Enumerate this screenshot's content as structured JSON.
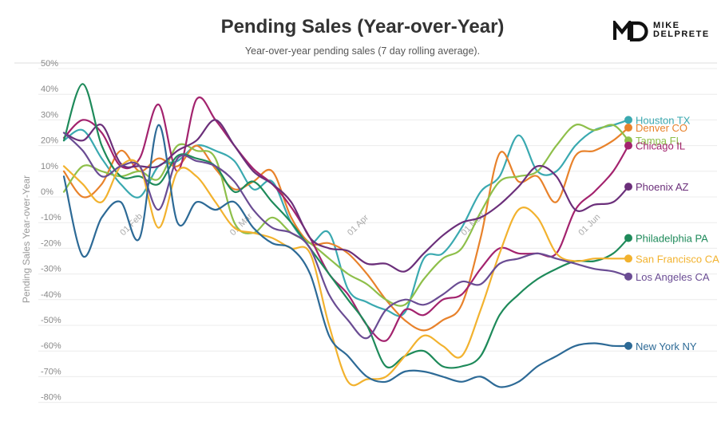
{
  "header": {
    "title": "Pending Sales (Year-over-Year)",
    "subtitle": "Year-over-year pending sales (7 day rolling average)."
  },
  "logo": {
    "mark": "MD",
    "line1": "MIKE",
    "line2": "DELPRETE"
  },
  "chart_data": {
    "type": "line",
    "title": "Pending Sales (Year-over-Year)",
    "subtitle": "Year-over-year pending sales (7 day rolling average).",
    "xlabel": "",
    "ylabel": "Pending Sales Year-over-Year",
    "x": [
      "2020-01-15",
      "2020-01-20",
      "2020-01-25",
      "2020-01-30",
      "2020-02-04",
      "2020-02-09",
      "2020-02-14",
      "2020-02-19",
      "2020-02-24",
      "2020-02-29",
      "2020-03-05",
      "2020-03-10",
      "2020-03-15",
      "2020-03-20",
      "2020-03-25",
      "2020-03-30",
      "2020-04-04",
      "2020-04-09",
      "2020-04-14",
      "2020-04-19",
      "2020-04-24",
      "2020-04-29",
      "2020-05-04",
      "2020-05-09",
      "2020-05-14",
      "2020-05-19",
      "2020-05-24",
      "2020-05-29",
      "2020-06-03",
      "2020-06-08",
      "2020-06-12"
    ],
    "x_ticks": [
      "01 Feb",
      "01 Mar",
      "01 Apr",
      "01 May",
      "01 Jun"
    ],
    "x_tick_dates": [
      "2020-02-01",
      "2020-03-01",
      "2020-04-01",
      "2020-05-01",
      "2020-06-01"
    ],
    "x_range": [
      "2020-01-15",
      "2020-06-12"
    ],
    "y_ticks": [
      "50%",
      "40%",
      "30%",
      "20%",
      "10%",
      "0%",
      "-10%",
      "-20%",
      "-30%",
      "-40%",
      "-50%",
      "-60%",
      "-70%",
      "-80%"
    ],
    "y_tick_values": [
      50,
      40,
      30,
      20,
      10,
      0,
      -10,
      -20,
      -30,
      -40,
      -50,
      -60,
      -70,
      -80
    ],
    "ylim": [
      -82,
      50
    ],
    "grid": true,
    "legend": "end-of-line labels",
    "series": [
      {
        "name": "Houston TX",
        "color": "#3aa9b0",
        "values": [
          22,
          26,
          15,
          5,
          0,
          12,
          14,
          20,
          18,
          14,
          3,
          6,
          -10,
          -18,
          -14,
          -36,
          -41,
          -44,
          -45,
          -24,
          -22,
          -12,
          2,
          8,
          24,
          10,
          10,
          20,
          26,
          28,
          30
        ]
      },
      {
        "name": "Denver CO",
        "color": "#e8822b",
        "values": [
          10,
          0,
          5,
          18,
          10,
          15,
          12,
          20,
          11,
          3,
          6,
          10,
          -8,
          -18,
          -18,
          -22,
          -30,
          -40,
          -48,
          -52,
          -48,
          -42,
          -16,
          17,
          6,
          8,
          -2,
          16,
          18,
          22,
          27
        ]
      },
      {
        "name": "Tampa FL",
        "color": "#8ebf4a",
        "values": [
          2,
          12,
          10,
          8,
          10,
          7,
          20,
          18,
          15,
          -10,
          -14,
          -8,
          -14,
          -18,
          -24,
          -30,
          -34,
          -40,
          -42,
          -32,
          -24,
          -20,
          -6,
          6,
          8,
          10,
          20,
          28,
          26,
          28,
          22
        ]
      },
      {
        "name": "Chicago IL",
        "color": "#a3236e",
        "values": [
          23,
          30,
          25,
          12,
          15,
          36,
          10,
          38,
          30,
          20,
          11,
          5,
          -4,
          -16,
          -30,
          -38,
          -50,
          -56,
          -44,
          -46,
          -40,
          -38,
          -28,
          -20,
          -22,
          -22,
          -22,
          -5,
          2,
          10,
          20
        ]
      },
      {
        "name": "Phoenix AZ",
        "color": "#6b2f7a",
        "values": [
          25,
          22,
          28,
          13,
          12,
          12,
          18,
          22,
          30,
          20,
          10,
          5,
          -2,
          -16,
          -20,
          -21,
          -26,
          -26,
          -29,
          -22,
          -15,
          -10,
          -8,
          -3,
          4,
          12,
          8,
          -5,
          -3,
          -2,
          4
        ]
      },
      {
        "name": "Philadelphia PA",
        "color": "#1e8a5a",
        "values": [
          22,
          44,
          20,
          8,
          8,
          5,
          16,
          15,
          12,
          2,
          6,
          -2,
          -10,
          -20,
          -30,
          -40,
          -50,
          -66,
          -62,
          -60,
          -66,
          -66,
          -62,
          -46,
          -38,
          -32,
          -28,
          -25,
          -25,
          -22,
          -16
        ]
      },
      {
        "name": "San Francisco CA",
        "color": "#f2b22e",
        "values": [
          12,
          5,
          -2,
          12,
          12,
          -12,
          10,
          8,
          -2,
          -12,
          -14,
          -16,
          -20,
          -22,
          -50,
          -72,
          -71,
          -70,
          -62,
          -54,
          -58,
          -62,
          -44,
          -22,
          -5,
          -8,
          -22,
          -25,
          -24,
          -24,
          -24
        ]
      },
      {
        "name": "Los Angeles CA",
        "color": "#6a4c93",
        "values": [
          25,
          18,
          8,
          12,
          12,
          -5,
          15,
          14,
          12,
          6,
          -5,
          -12,
          -14,
          -20,
          -38,
          -48,
          -55,
          -44,
          -40,
          -42,
          -38,
          -33,
          -34,
          -26,
          -24,
          -22,
          -24,
          -26,
          -28,
          -29,
          -31
        ]
      },
      {
        "name": "New York NY",
        "color": "#2d6a96",
        "values": [
          8,
          -23,
          -8,
          -2,
          -16,
          28,
          -10,
          -2,
          -5,
          -2,
          -12,
          -18,
          -20,
          -30,
          -54,
          -62,
          -70,
          -72,
          -68,
          -68,
          -70,
          -72,
          -70,
          -74,
          -72,
          -66,
          -62,
          -58,
          -57,
          -58,
          -58
        ]
      }
    ],
    "labels": [
      "Houston TX",
      "Denver CO",
      "Tampa FL",
      "Chicago IL",
      "Phoenix AZ",
      "Philadelphia PA",
      "San Francisco CA",
      "Los Angeles CA",
      "New York NY"
    ]
  }
}
